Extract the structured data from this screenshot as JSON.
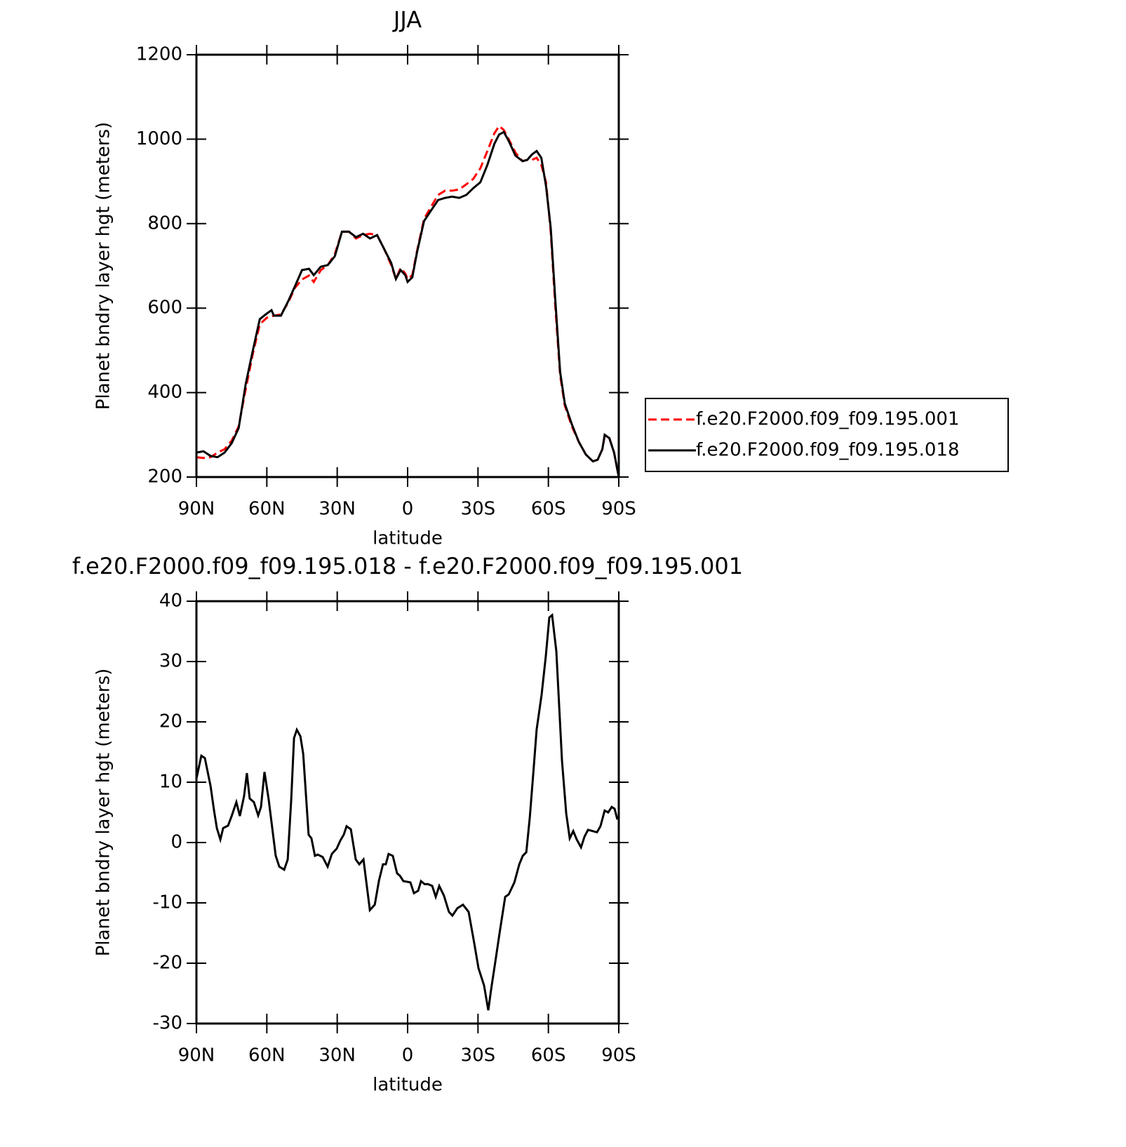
{
  "chart_data": [
    {
      "type": "line",
      "title": "JJA",
      "xlabel": "latitude",
      "ylabel": "Planet bndry layer hgt (meters)",
      "xlim": [
        90,
        -90
      ],
      "ylim": [
        200,
        1200
      ],
      "xticks": [
        {
          "value": 90,
          "label": "90N"
        },
        {
          "value": 60,
          "label": "60N"
        },
        {
          "value": 30,
          "label": "30N"
        },
        0,
        {
          "value": -30,
          "label": "30S"
        },
        {
          "value": -60,
          "label": "60S"
        },
        {
          "value": -90,
          "label": "90S"
        }
      ],
      "yticks": [
        200,
        400,
        600,
        800,
        1000,
        1200
      ],
      "legend": "right",
      "series": [
        {
          "name": "f.e20.F2000.f09_f09.195.001",
          "color": "#ff0000",
          "linestyle": "dashed",
          "x": [
            90,
            87,
            84,
            81,
            78,
            75,
            72,
            69,
            66,
            63,
            60,
            57,
            54,
            51,
            48,
            45,
            42,
            40,
            37,
            34,
            31,
            28,
            25,
            22,
            19,
            16,
            13,
            10,
            7,
            5,
            3,
            1,
            0,
            -2,
            -4,
            -7,
            -10,
            -13,
            -16,
            -19,
            -22,
            -25,
            -28,
            -31,
            -34,
            -37,
            -39,
            -41,
            -43,
            -46,
            -49,
            -51,
            -53,
            -55,
            -57,
            -59,
            -61,
            -63,
            -65,
            -67,
            -70,
            -73,
            -76,
            -79,
            -81,
            -83,
            -84,
            -86,
            -88,
            -90
          ],
          "values": [
            247,
            245,
            247,
            258,
            266,
            286,
            320,
            408,
            491,
            562,
            577,
            582,
            585,
            612,
            648,
            668,
            677,
            662,
            690,
            702,
            728,
            781,
            781,
            765,
            773,
            776,
            773,
            740,
            702,
            669,
            695,
            682,
            669,
            678,
            735,
            811,
            840,
            868,
            878,
            878,
            881,
            893,
            906,
            931,
            972,
            1014,
            1031,
            1022,
            1001,
            968,
            948,
            951,
            951,
            956,
            939,
            898,
            781,
            599,
            441,
            369,
            320,
            283,
            253,
            237,
            241,
            266,
            297,
            292,
            258,
            200
          ]
        },
        {
          "name": "f.e20.F2000.f09_f09.195.018",
          "color": "#000000",
          "linestyle": "solid",
          "x": [
            90,
            87,
            84,
            81,
            78,
            75,
            72,
            69,
            66,
            63,
            60,
            58,
            57,
            54,
            51,
            48,
            45,
            42,
            40,
            37,
            34,
            31,
            28,
            25,
            22,
            19,
            16,
            13,
            10,
            7,
            5,
            3,
            1,
            0,
            -2,
            -4,
            -7,
            -10,
            -13,
            -16,
            -19,
            -22,
            -25,
            -28,
            -31,
            -34,
            -37,
            -39,
            -41,
            -43,
            -46,
            -49,
            -51,
            -53,
            -55,
            -57,
            -59,
            -61,
            -63,
            -65,
            -67,
            -70,
            -73,
            -76,
            -79,
            -81,
            -83,
            -84,
            -86,
            -88,
            -90
          ],
          "values": [
            258,
            261,
            250,
            247,
            258,
            280,
            316,
            420,
            499,
            574,
            587,
            595,
            582,
            582,
            615,
            652,
            690,
            693,
            678,
            698,
            702,
            723,
            781,
            781,
            768,
            776,
            765,
            773,
            740,
            707,
            669,
            690,
            678,
            662,
            673,
            732,
            806,
            831,
            856,
            861,
            864,
            861,
            868,
            884,
            898,
            939,
            989,
            1011,
            1017,
            997,
            961,
            948,
            951,
            964,
            972,
            956,
            889,
            790,
            615,
            449,
            374,
            325,
            283,
            253,
            237,
            241,
            266,
            300,
            292,
            258,
            200
          ]
        }
      ]
    },
    {
      "type": "line",
      "title": "f.e20.F2000.f09_f09.195.018 - f.e20.F2000.f09_f09.195.001",
      "xlabel": "latitude",
      "ylabel": "Planet bndry layer hgt (meters)",
      "xlim": [
        90,
        -90
      ],
      "ylim": [
        -30,
        40
      ],
      "xticks": [
        {
          "value": 90,
          "label": "90N"
        },
        {
          "value": 60,
          "label": "60N"
        },
        {
          "value": 30,
          "label": "30N"
        },
        0,
        {
          "value": -30,
          "label": "30S"
        },
        {
          "value": -60,
          "label": "60S"
        },
        {
          "value": -90,
          "label": "90S"
        }
      ],
      "yticks": [
        -30,
        -20,
        -10,
        0,
        10,
        20,
        30,
        40
      ],
      "series": [
        {
          "color": "#000000",
          "linestyle": "solid",
          "x": [
            90,
            87.9,
            86.4,
            84,
            82.5,
            81.3,
            79.8,
            78.6,
            76.5,
            75,
            73,
            71.5,
            69.7,
            68.5,
            67.3,
            65.5,
            63.7,
            62.5,
            61,
            59.2,
            56.2,
            54.7,
            52.6,
            51.1,
            49.6,
            48.4,
            47.2,
            45.7,
            44.5,
            42.2,
            41,
            39.5,
            38.3,
            36.2,
            34.1,
            32.3,
            30.2,
            28.7,
            27.2,
            26,
            24.2,
            22.1,
            20.6,
            18.8,
            16.1,
            14,
            12.2,
            10.5,
            9.3,
            8.1,
            6.3,
            4.5,
            3.3,
            1.8,
            -1.2,
            -2.7,
            -4.5,
            -5.7,
            -7.2,
            -8.7,
            -10.5,
            -12,
            -13.5,
            -15.5,
            -17.6,
            -19.1,
            -21.2,
            -23.6,
            -26,
            -28.4,
            -30.2,
            -32.6,
            -34.4,
            -35.6,
            -37.4,
            -39.2,
            -41.6,
            -43.1,
            -45.5,
            -47.6,
            -49.1,
            -50.6,
            -52.1,
            -53.6,
            -55,
            -57.1,
            -58.9,
            -60.4,
            -61.6,
            -63.4,
            -65.8,
            -67.6,
            -69.1,
            -70.6,
            -72.1,
            -73.9,
            -75.4,
            -76.9,
            -78.9,
            -80.7,
            -82.2,
            -84,
            -85.5,
            -87,
            -88.2,
            -89.4
          ],
          "values": [
            10.6,
            14.4,
            14,
            9.4,
            5.3,
            2.4,
            0.5,
            2.4,
            2.8,
            4.4,
            6.7,
            4.4,
            7.7,
            11.5,
            7.3,
            6.7,
            4.5,
            5.9,
            11.7,
            7.1,
            -2.2,
            -4,
            -4.5,
            -2.8,
            7.1,
            17.3,
            18.7,
            17.6,
            14.7,
            1.3,
            0.7,
            -2.2,
            -2,
            -2.4,
            -4,
            -1.9,
            -1,
            0.3,
            1.3,
            2.7,
            2.2,
            -2.8,
            -3.6,
            -2.8,
            -11.2,
            -10.3,
            -6.3,
            -3.6,
            -3.6,
            -1.9,
            -2.2,
            -5.1,
            -5.5,
            -6.4,
            -6.6,
            -8.4,
            -8,
            -6.4,
            -6.9,
            -6.9,
            -7.2,
            -9,
            -7.2,
            -8.8,
            -11.5,
            -12.1,
            -10.9,
            -10.3,
            -11.5,
            -16.7,
            -20.8,
            -23.7,
            -27.8,
            -24.3,
            -19.7,
            -15,
            -9,
            -8.6,
            -6.6,
            -3.6,
            -2.2,
            -1.6,
            4.2,
            11.7,
            18.7,
            24.5,
            30.9,
            37.3,
            37.7,
            31.7,
            13.5,
            4.8,
            0.7,
            1.9,
            0.5,
            -0.8,
            1,
            2.1,
            1.9,
            1.7,
            2.7,
            5.3,
            5,
            5.9,
            5.6,
            3.8
          ]
        }
      ]
    }
  ]
}
